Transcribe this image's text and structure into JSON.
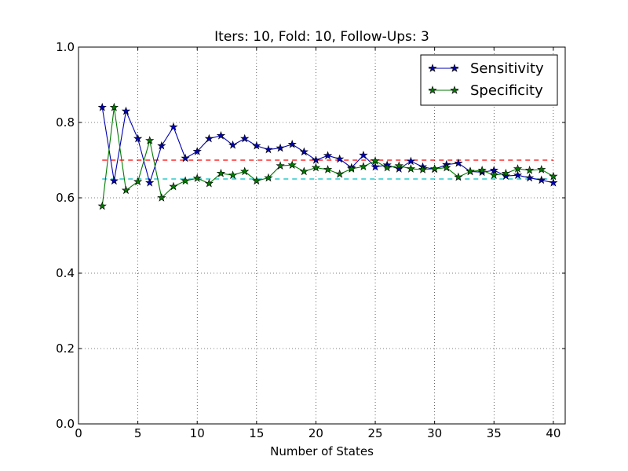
{
  "chart_data": {
    "type": "line",
    "title": "Iters: 10, Fold: 10, Follow-Ups: 3",
    "xlabel": "Number of States",
    "ylabel": "",
    "xlim": [
      0,
      41
    ],
    "ylim": [
      0.0,
      1.0
    ],
    "xticks": [
      0,
      5,
      10,
      15,
      20,
      25,
      30,
      35,
      40
    ],
    "xtick_labels": [
      "0",
      "5",
      "10",
      "15",
      "20",
      "25",
      "30",
      "35",
      "40"
    ],
    "yticks": [
      0.0,
      0.2,
      0.4,
      0.6,
      0.8,
      1.0
    ],
    "ytick_labels": [
      "0.0",
      "0.2",
      "0.4",
      "0.6",
      "0.8",
      "1.0"
    ],
    "grid": true,
    "legend_position": "top-right",
    "x": [
      2,
      3,
      4,
      5,
      6,
      7,
      8,
      9,
      10,
      11,
      12,
      13,
      14,
      15,
      16,
      17,
      18,
      19,
      20,
      21,
      22,
      23,
      24,
      25,
      26,
      27,
      28,
      29,
      30,
      31,
      32,
      33,
      34,
      35,
      36,
      37,
      38,
      39,
      40
    ],
    "series": [
      {
        "name": "Sensitivity",
        "color": "#0000b3",
        "marker": "star",
        "values": [
          0.84,
          0.645,
          0.83,
          0.757,
          0.64,
          0.738,
          0.788,
          0.705,
          0.723,
          0.757,
          0.765,
          0.74,
          0.757,
          0.738,
          0.728,
          0.732,
          0.742,
          0.722,
          0.7,
          0.712,
          0.703,
          0.68,
          0.713,
          0.682,
          0.687,
          0.677,
          0.697,
          0.682,
          0.676,
          0.688,
          0.692,
          0.67,
          0.668,
          0.673,
          0.658,
          0.66,
          0.653,
          0.647,
          0.64
        ]
      },
      {
        "name": "Specificity",
        "color": "#007a00",
        "marker": "star",
        "values": [
          0.578,
          0.84,
          0.62,
          0.643,
          0.752,
          0.6,
          0.63,
          0.645,
          0.652,
          0.638,
          0.665,
          0.66,
          0.67,
          0.645,
          0.653,
          0.685,
          0.687,
          0.67,
          0.68,
          0.675,
          0.663,
          0.677,
          0.683,
          0.698,
          0.68,
          0.685,
          0.677,
          0.675,
          0.677,
          0.68,
          0.655,
          0.67,
          0.673,
          0.66,
          0.665,
          0.677,
          0.673,
          0.675,
          0.657
        ]
      }
    ],
    "reference_lines": [
      {
        "name": "sensitivity-threshold",
        "y": 0.7,
        "x_range": [
          2,
          40
        ],
        "color": "#ff0000",
        "style": "dashed"
      },
      {
        "name": "specificity-threshold",
        "y": 0.65,
        "x_range": [
          2,
          40
        ],
        "color": "#00bfbf",
        "style": "dashed"
      }
    ]
  }
}
